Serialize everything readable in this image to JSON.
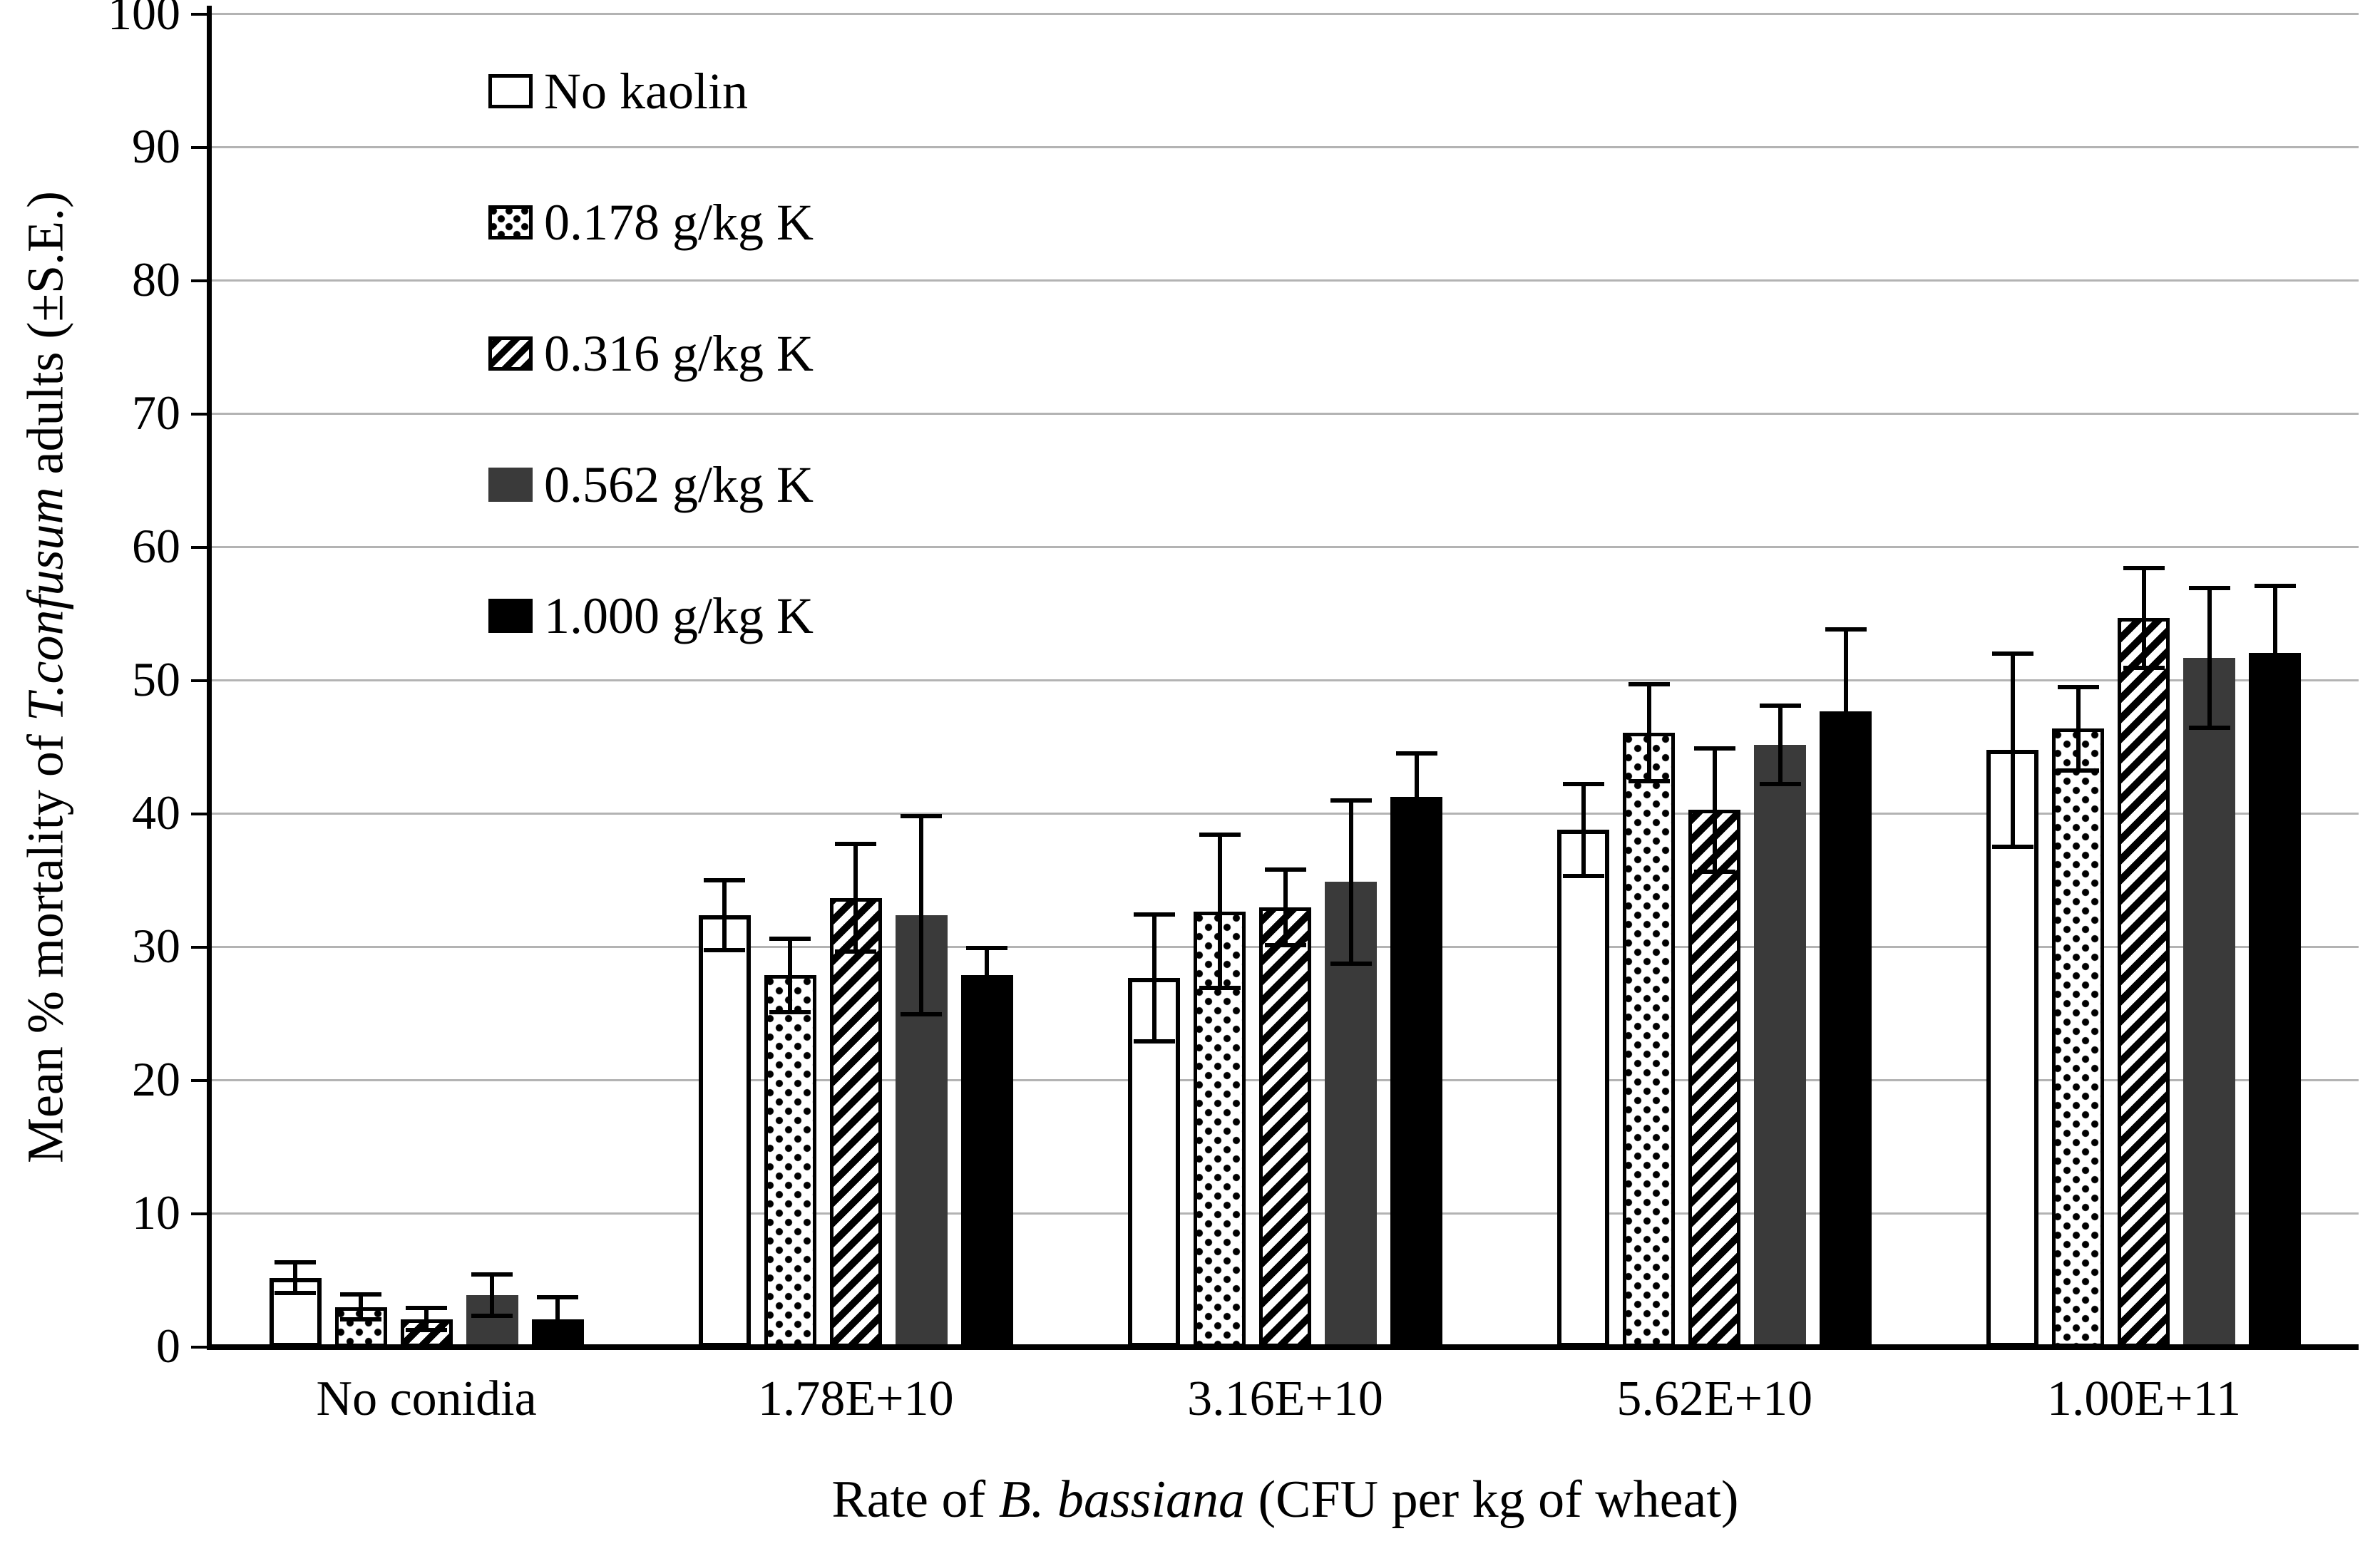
{
  "chart_data": {
    "type": "bar",
    "title": "",
    "categories": [
      "No conidia",
      "1.78E+10",
      "3.16E+10",
      "5.62E+10",
      "1.00E+11"
    ],
    "series": [
      {
        "name": "No kaolin",
        "pattern": "plain-white",
        "values": [
          5.2,
          32.4,
          27.7,
          38.8,
          44.8
        ],
        "errors": [
          1.3,
          2.8,
          4.9,
          3.6,
          7.4
        ]
      },
      {
        "name": "0.178 g/kg K",
        "pattern": "dots",
        "values": [
          3.0,
          27.9,
          32.7,
          46.1,
          46.4
        ],
        "errors": [
          1.1,
          2.9,
          5.9,
          3.8,
          3.3
        ]
      },
      {
        "name": "0.316 g/kg K",
        "pattern": "diagonal-stripes",
        "values": [
          2.1,
          33.7,
          33.0,
          40.3,
          54.7
        ],
        "errors": [
          1.0,
          4.2,
          3.0,
          4.8,
          3.9
        ]
      },
      {
        "name": "0.562 g/kg K",
        "pattern": "dark-gray",
        "values": [
          3.9,
          32.4,
          34.9,
          45.2,
          51.7
        ],
        "errors": [
          1.7,
          7.6,
          6.3,
          3.1,
          5.4
        ]
      },
      {
        "name": "1.000 g/kg K",
        "pattern": "black",
        "values": [
          2.1,
          27.9,
          41.3,
          47.7,
          52.1
        ],
        "errors": [
          1.8,
          2.2,
          3.4,
          6.3,
          5.2
        ]
      }
    ],
    "error_bar_note": "±S.E.",
    "ylabel_parts": {
      "pre": "Mean % mortality of ",
      "italic": "T.confusum",
      "post": " adults (±S.E.)"
    },
    "xlabel_parts": {
      "pre": "Rate of ",
      "italic": "B. bassiana",
      "post": " (CFU per kg of wheat)"
    },
    "ylim": [
      0,
      100
    ],
    "ytick_step": 10,
    "yticks": [
      "0",
      "10",
      "20",
      "30",
      "40",
      "50",
      "60",
      "70",
      "80",
      "90",
      "100"
    ],
    "grid": "horizontal gridlines on",
    "legend_position": "inside-top-left",
    "colors": {
      "dark_gray": "#3a3a3a",
      "black": "#000000",
      "grid": "#b3b3b3",
      "axis": "#000000",
      "background": "#ffffff"
    }
  }
}
